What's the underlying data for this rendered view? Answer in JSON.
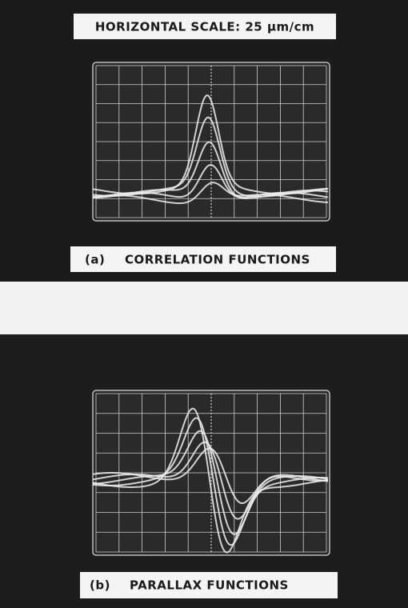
{
  "header": {
    "title": "HORIZONTAL SCALE: 25 μm/cm"
  },
  "panels": [
    {
      "label": "(a)",
      "caption": "CORRELATION FUNCTIONS"
    },
    {
      "label": "(b)",
      "caption": "PARALLAX FUNCTIONS"
    }
  ]
}
